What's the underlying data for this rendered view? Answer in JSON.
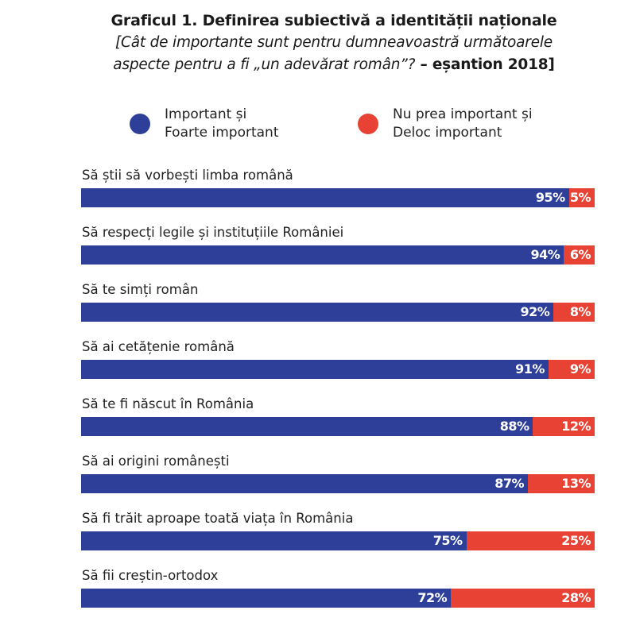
{
  "colors": {
    "important": "#2e3f9a",
    "not_important": "#e84234"
  },
  "title": "Graficul 1. Definirea subiectivă a identității  naționale",
  "subtitle": {
    "line1": "[Cât de importante sunt pentru dumneavoastră următoarele",
    "line2_italic": "aspecte pentru a fi „un adevărat român”?",
    "line2_bold": " – eșantion 2018]"
  },
  "legend": [
    {
      "line1": "Important și",
      "line2": "Foarte important",
      "color": "#2e3f9a"
    },
    {
      "line1": "Nu prea important și",
      "line2": "Deloc important",
      "color": "#e84234"
    }
  ],
  "chart_data": {
    "type": "bar",
    "orientation": "horizontal-stacked-100",
    "title": "Graficul 1. Definirea subiectivă a identității naționale",
    "subtitle": "[Cât de importante sunt pentru dumneavoastră următoarele aspecte pentru a fi „un adevărat român”? – eșantion 2018]",
    "xlabel": "",
    "ylabel": "",
    "xlim": [
      0,
      100
    ],
    "grid": false,
    "legend_position": "top",
    "categories": [
      "Să știi să vorbești limba română",
      "Să respecți legile și instituțiile României",
      "Să te simți român",
      "Să ai cetățenie română",
      "Să te fi născut în România",
      "Să ai origini românești",
      "Să fi trăit aproape toată viața în România",
      "Să fii creștin-ortodox"
    ],
    "series": [
      {
        "name": "Important și Foarte important",
        "values": [
          95,
          94,
          92,
          91,
          88,
          87,
          75,
          72
        ]
      },
      {
        "name": "Nu prea important și Deloc important",
        "values": [
          5,
          6,
          8,
          9,
          12,
          13,
          25,
          28
        ]
      }
    ],
    "unit": "%"
  }
}
